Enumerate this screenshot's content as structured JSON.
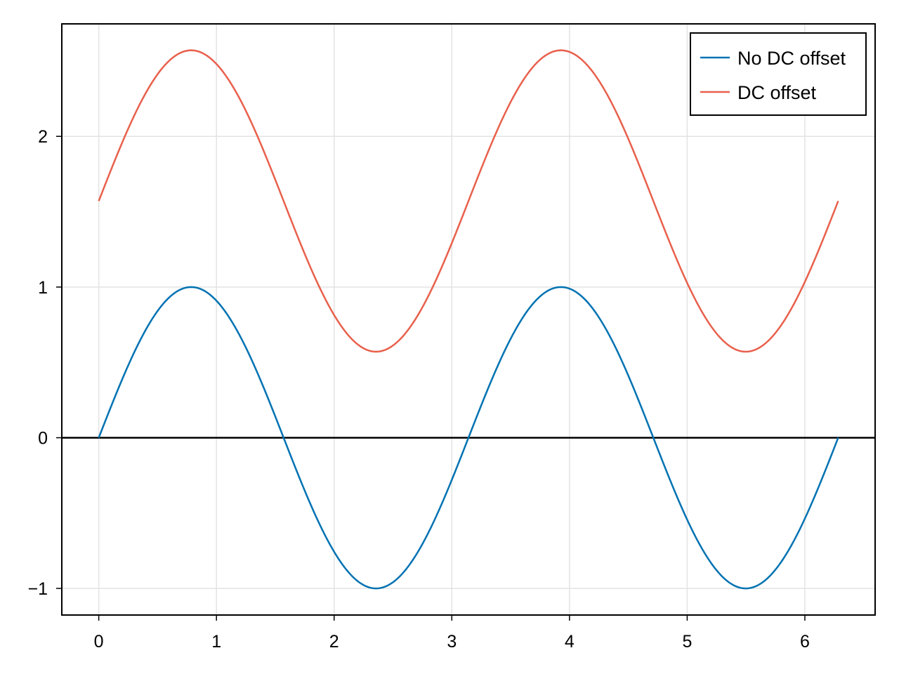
{
  "chart_data": {
    "type": "line",
    "title": "",
    "xlabel": "",
    "ylabel": "",
    "xlim": [
      -0.314,
      6.597
    ],
    "ylim": [
      -1.1765,
      2.7465
    ],
    "xticks": [
      0,
      1,
      2,
      3,
      4,
      5,
      6
    ],
    "yticks": [
      -1,
      0,
      1,
      2
    ],
    "xtick_labels": [
      "0",
      "1",
      "2",
      "3",
      "4",
      "5",
      "6"
    ],
    "ytick_labels": [
      "−1",
      "0",
      "1",
      "2"
    ],
    "grid": true,
    "hline": {
      "y": 0,
      "color": "#000000"
    },
    "legend_position": "top-right",
    "series": [
      {
        "name": "No DC offset",
        "color": "#0072b2",
        "x": [
          0,
          0.3927,
          0.7854,
          1.1781,
          1.5708,
          1.9635,
          2.3562,
          2.7489,
          3.1416,
          3.5343,
          3.927,
          4.3197,
          4.7124,
          5.1051,
          5.4978,
          5.8905,
          6.2832
        ],
        "y": [
          0,
          0.707,
          1,
          0.707,
          0,
          -0.707,
          -1,
          -0.707,
          0,
          0.707,
          1,
          0.707,
          0,
          -0.707,
          -1,
          -0.707,
          0
        ]
      },
      {
        "name": "DC offset",
        "color": "#e8604c",
        "x": [
          0,
          0.3927,
          0.7854,
          1.1781,
          1.5708,
          1.9635,
          2.3562,
          2.7489,
          3.1416,
          3.5343,
          3.927,
          4.3197,
          4.7124,
          5.1051,
          5.4978,
          5.8905,
          6.2832
        ],
        "y": [
          1.571,
          2.278,
          2.571,
          2.278,
          1.571,
          0.864,
          0.571,
          0.864,
          1.571,
          2.278,
          2.571,
          2.278,
          1.571,
          0.864,
          0.571,
          0.864,
          1.571
        ]
      }
    ]
  }
}
